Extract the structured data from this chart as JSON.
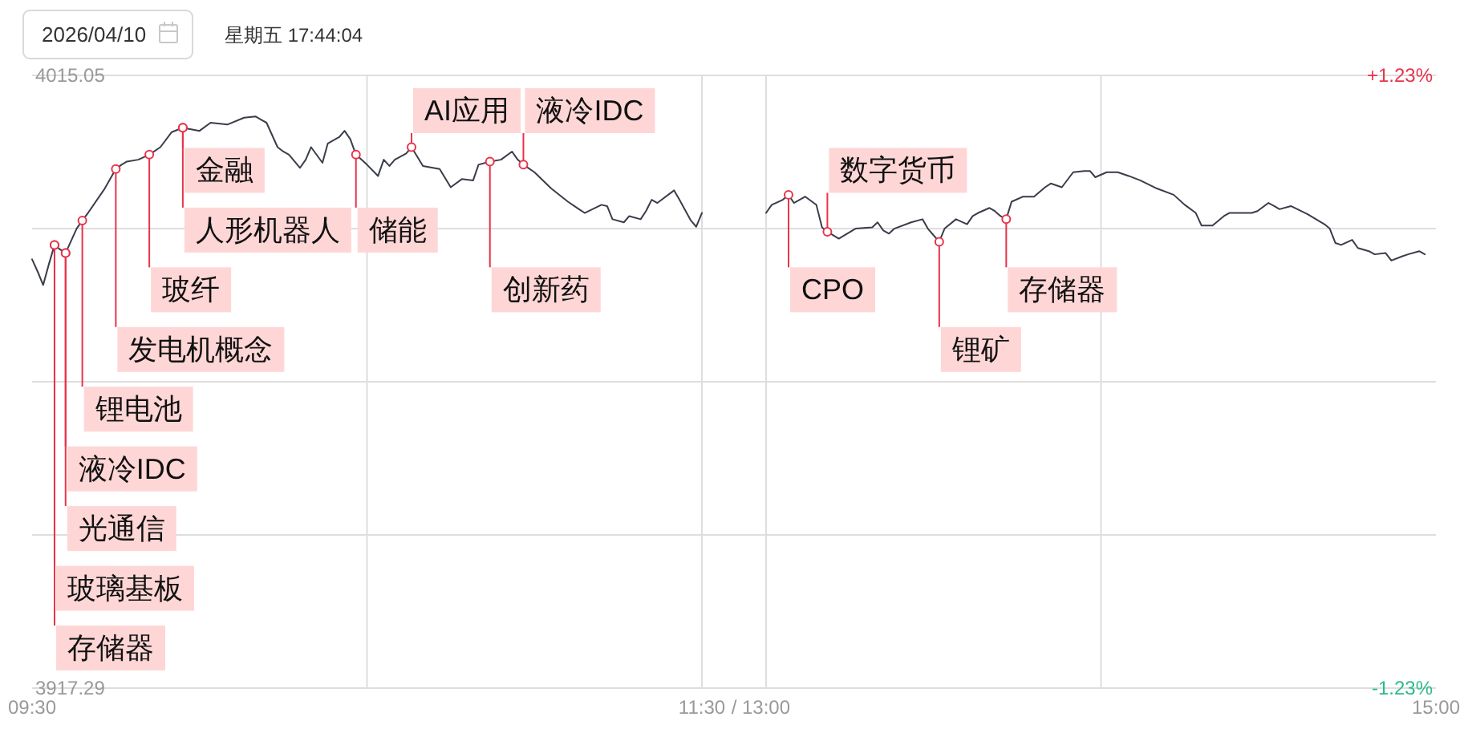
{
  "chart_data": [
    {
      "type": "line",
      "title": "2026/04/10",
      "subtitle": "星期五 17:44:04",
      "x": [
        9.5,
        9.517,
        9.533,
        9.55,
        9.567,
        9.583,
        9.6,
        9.633,
        9.65,
        9.667,
        9.717,
        9.75,
        9.767,
        9.783,
        9.817,
        9.85,
        9.883,
        9.917,
        9.95,
        10,
        10.033,
        10.083,
        10.133,
        10.167,
        10.183,
        10.2,
        10.233,
        10.25,
        10.267,
        10.3,
        10.317,
        10.333,
        10.367,
        10.383,
        10.417,
        10.433,
        10.45,
        10.467,
        10.5,
        10.533,
        10.55,
        10.567,
        10.583,
        10.617,
        10.633,
        10.667,
        10.717,
        10.75,
        10.783,
        10.817,
        10.833,
        10.867,
        10.9,
        10.933,
        10.95,
        10.967,
        11,
        11.05,
        11.1,
        11.133,
        11.15,
        11.2,
        11.217,
        11.233,
        11.267,
        11.283,
        11.317,
        11.333,
        11.35,
        11.367,
        11.417,
        11.433,
        11.467,
        11.483,
        11.5
      ],
      "xlim": [
        9.5,
        11.5
      ],
      "xticks": [
        {
          "value": 9.5,
          "label": "09:30"
        },
        {
          "value": 10.5,
          "label": null
        },
        {
          "value": 11.5,
          "label": "11:30"
        }
      ],
      "ylim": [
        3917.29,
        4015.05
      ],
      "yticks": [
        3917.29,
        {
          "value": 3941.73,
          "label": null
        },
        {
          "value": 3966.17,
          "label": null
        },
        {
          "value": 3990.61,
          "label": null
        },
        4015.05
      ],
      "grid": true,
      "series": [
        {
          "color": "#3a3d4a",
          "values": [
            3985.7,
            3983.7,
            3981.6,
            3984.9,
            3988.0,
            3987.3,
            3986.7,
            3990.6,
            3991.9,
            3993.1,
            3997.0,
            4000.1,
            4000.8,
            4001.3,
            4001.6,
            4002.4,
            4003.6,
            4006.0,
            4006.7,
            4006.2,
            4007.5,
            4007.2,
            4008.3,
            4008.5,
            4008.0,
            4007.5,
            4003.6,
            4002.9,
            4002.4,
            4000.3,
            4001.6,
            4003.6,
            4001.1,
            4004.2,
            4005.2,
            4006.2,
            4004.9,
            4002.4,
            4000.8,
            3999.0,
            4001.6,
            4000.6,
            4001.6,
            4002.6,
            4003.6,
            4000.6,
            4000.1,
            3997.2,
            3998.5,
            3998.3,
            4000.8,
            4001.3,
            4001.6,
            4002.9,
            4001.6,
            4000.8,
            3999.6,
            3997.0,
            3994.9,
            3993.7,
            3993.1,
            3994.4,
            3994.2,
            3992.1,
            3991.6,
            3992.6,
            3992.1,
            3993.4,
            3995.2,
            3994.7,
            3996.7,
            3995.2,
            3991.9,
            3990.9,
            3993.1
          ]
        }
      ],
      "annotations": [
        "/",
        {
          "text": "玻璃基板",
          "x": 9.567,
          "y": 3988.0
        },
        {
          "text": "存储器",
          "x": 9.567,
          "y": 3988.0
        },
        {
          "text": "液冷IDC",
          "x": 9.6,
          "y": 3986.7
        },
        {
          "text": "光通信",
          "x": 9.6,
          "y": 3986.7
        },
        {
          "text": "锂电池",
          "x": 9.65,
          "y": 3991.9
        },
        {
          "text": "发电机概念",
          "x": 9.75,
          "y": 4000.1
        },
        {
          "text": "玻纤",
          "x": 9.85,
          "y": 4002.4
        },
        {
          "text": "金融",
          "x": 9.95,
          "y": 4006.7
        },
        {
          "text": "人形机器人",
          "x": 9.95,
          "y": 4006.7
        },
        {
          "text": "储能",
          "x": 10.467,
          "y": 4002.4
        },
        {
          "text": "AI应用",
          "x": 10.633,
          "y": 4003.6
        },
        {
          "text": "创新药",
          "x": 10.867,
          "y": 4001.3
        },
        {
          "text": "液冷IDC",
          "x": 10.967,
          "y": 4000.8
        }
      ]
    },
    {
      "type": "line",
      "x": [
        13,
        13.017,
        13.05,
        13.067,
        13.083,
        13.117,
        13.15,
        13.167,
        13.183,
        13.217,
        13.267,
        13.317,
        13.333,
        13.35,
        13.367,
        13.383,
        13.433,
        13.467,
        13.483,
        13.517,
        13.533,
        13.567,
        13.6,
        13.617,
        13.633,
        13.667,
        13.683,
        13.7,
        13.717,
        13.733,
        13.767,
        13.8,
        13.833,
        13.85,
        13.883,
        13.917,
        13.95,
        13.967,
        13.983,
        14.017,
        14.05,
        14.083,
        14.117,
        14.167,
        14.217,
        14.25,
        14.283,
        14.3,
        14.333,
        14.367,
        14.383,
        14.45,
        14.467,
        14.5,
        14.517,
        14.533,
        14.567,
        14.617,
        14.667,
        14.683,
        14.7,
        14.717,
        14.75,
        14.767,
        14.8,
        14.817,
        14.85,
        14.867,
        14.9,
        14.917,
        14.95,
        14.967
      ],
      "xlim": [
        13,
        15
      ],
      "xticks": [
        {
          "value": 13,
          "label": "13:00"
        },
        {
          "value": 14,
          "label": null
        },
        {
          "value": 15,
          "label": "15:00"
        }
      ],
      "ylim": [
        3917.29,
        4015.05
      ],
      "yticks": [
        {
          "value": 3917.29,
          "label": null
        },
        {
          "value": 3941.73,
          "label": null
        },
        {
          "value": 3966.17,
          "label": null
        },
        {
          "value": 3990.61,
          "label": null
        },
        {
          "value": 4015.05,
          "label": null
        }
      ],
      "y2lim": [
        -1.23,
        1.23
      ],
      "y2ticks": [
        {
          "value": -1.23,
          "label": "-1.23%"
        },
        {
          "value": 1.23,
          "label": "+1.23%"
        }
      ],
      "tick_labels": "x",
      "grid": true,
      "series": [
        {
          "color": "#3a3d4a",
          "values": [
            3993.1,
            3994.4,
            3995.2,
            3996.0,
            3994.7,
            3995.7,
            3994.4,
            3990.8,
            3990.1,
            3989.0,
            3990.6,
            3990.8,
            3991.6,
            3990.3,
            3989.8,
            3990.6,
            3991.6,
            3992.1,
            3990.6,
            3988.5,
            3990.6,
            3992.1,
            3991.3,
            3992.6,
            3993.1,
            3993.9,
            3993.4,
            3992.6,
            3992.1,
            3994.9,
            3995.7,
            3995.7,
            3997.2,
            3997.8,
            3997.2,
            3999.6,
            3999.8,
            3999.8,
            3998.8,
            3999.6,
            3999.6,
            3999.0,
            3998.3,
            3997.0,
            3996.0,
            3994.4,
            3993.1,
            3991.1,
            3991.1,
            3992.6,
            3993.1,
            3993.1,
            3993.4,
            3994.7,
            3994.2,
            3993.7,
            3994.2,
            3992.9,
            3991.3,
            3990.6,
            3988.3,
            3988.0,
            3988.8,
            3987.5,
            3987.0,
            3986.5,
            3986.7,
            3985.5,
            3986.2,
            3986.5,
            3987.0,
            3986.5
          ]
        }
      ],
      "annotations": [
        {
          "text": "CPO",
          "x": 13.067,
          "y": 3996.0
        },
        {
          "text": "数字货币",
          "x": 13.183,
          "y": 3990.1
        },
        {
          "text": "锂矿",
          "x": 13.517,
          "y": 3988.5
        },
        {
          "text": "存储器",
          "x": 13.717,
          "y": 3992.1
        }
      ]
    }
  ]
}
